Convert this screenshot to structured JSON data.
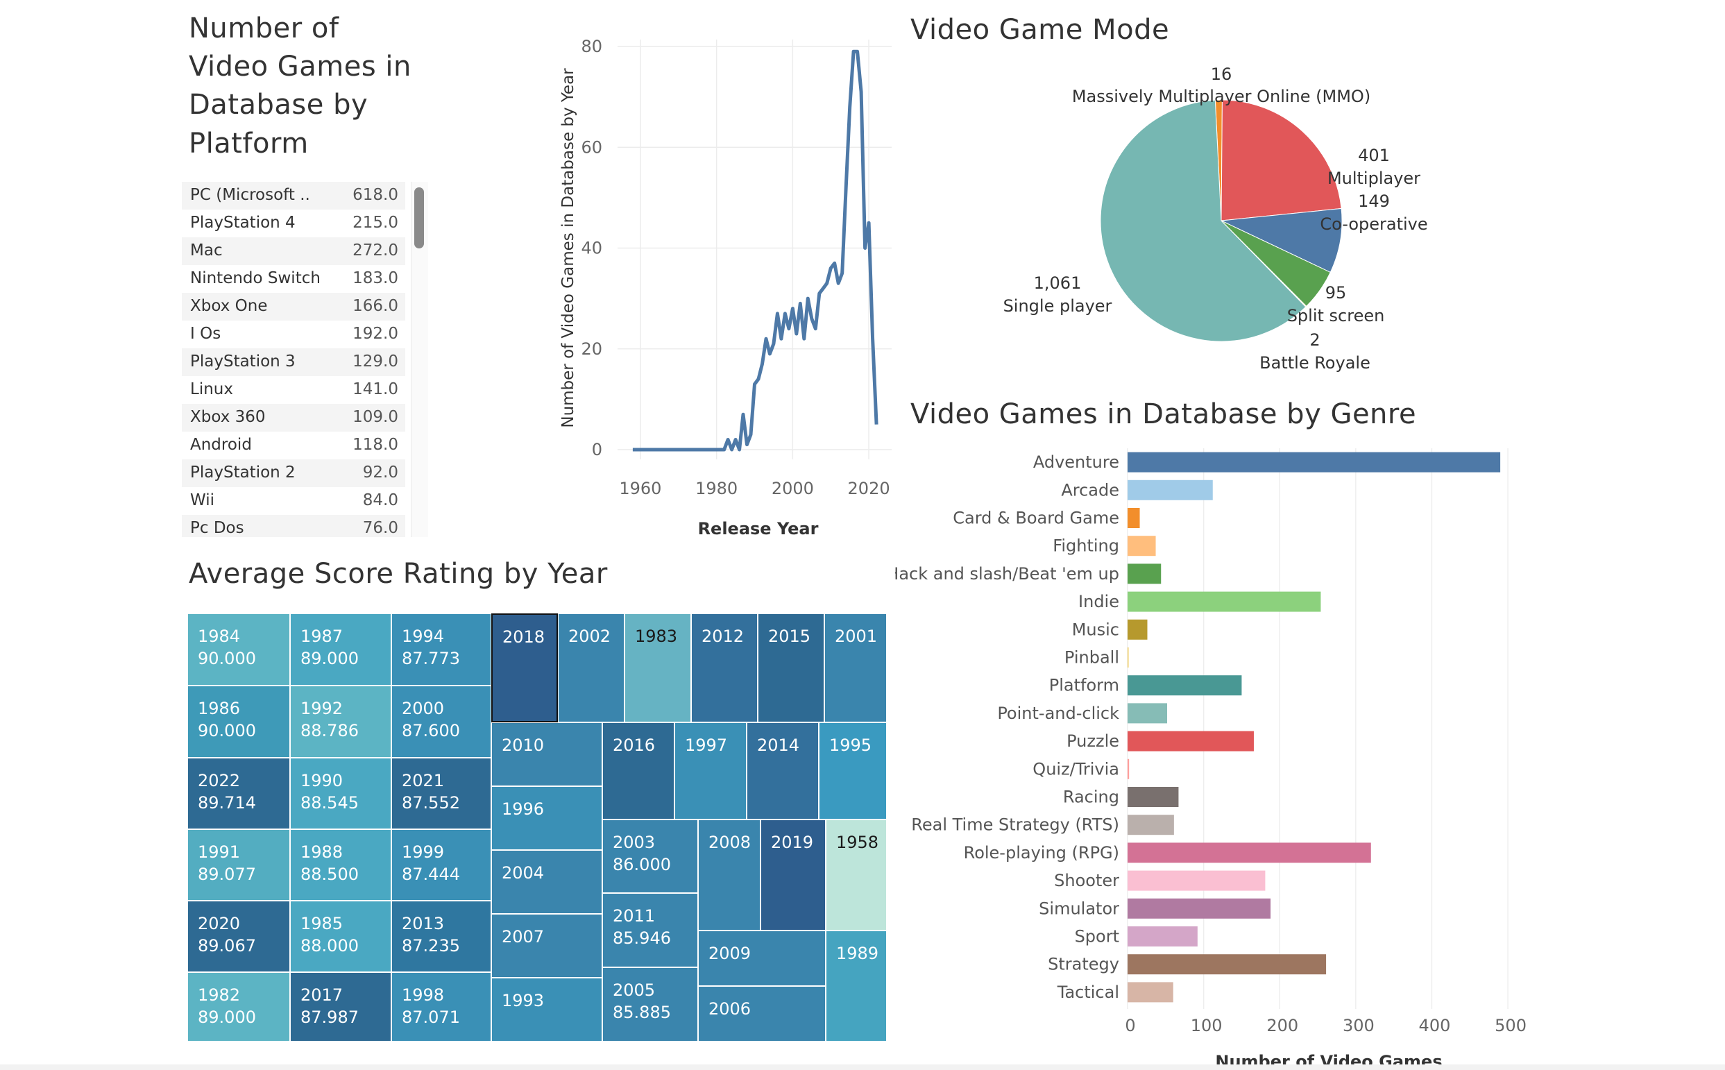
{
  "titles": {
    "platform": "Number of\nVideo Games in\nDatabase by\nPlatform",
    "mode": "Video Game Mode",
    "genre": "Video Games in Database by Genre",
    "score": "Average Score Rating by Year"
  },
  "platform_table": {
    "rows": [
      {
        "name": "PC (Microsoft ..",
        "value": "618.0"
      },
      {
        "name": "PlayStation 4",
        "value": "215.0"
      },
      {
        "name": "Mac",
        "value": "272.0"
      },
      {
        "name": "Nintendo Switch",
        "value": "183.0"
      },
      {
        "name": "Xbox One",
        "value": "166.0"
      },
      {
        "name": "I Os",
        "value": "192.0"
      },
      {
        "name": "PlayStation 3",
        "value": "129.0"
      },
      {
        "name": "Linux",
        "value": "141.0"
      },
      {
        "name": "Xbox 360",
        "value": "109.0"
      },
      {
        "name": "Android",
        "value": "118.0"
      },
      {
        "name": "PlayStation 2",
        "value": "92.0"
      },
      {
        "name": "Wii",
        "value": "84.0"
      },
      {
        "name": "Pc Dos",
        "value": "76.0"
      }
    ]
  },
  "chart_data": [
    {
      "type": "line",
      "xlabel": "Release Year",
      "ylabel": "Number of Video Games in Database by Year",
      "xlim": [
        1954,
        2026
      ],
      "ylim": [
        0,
        80
      ],
      "x_ticks": [
        1960,
        1980,
        2000,
        2020
      ],
      "y_ticks": [
        0,
        20,
        40,
        60,
        80
      ],
      "grid": true,
      "color": "#4e79a7",
      "points": [
        [
          1958,
          0
        ],
        [
          1978,
          0
        ],
        [
          1982,
          0
        ],
        [
          1983,
          2
        ],
        [
          1984,
          0
        ],
        [
          1985,
          2
        ],
        [
          1986,
          0
        ],
        [
          1987,
          7
        ],
        [
          1988,
          1
        ],
        [
          1989,
          3
        ],
        [
          1990,
          13
        ],
        [
          1991,
          14
        ],
        [
          1992,
          17
        ],
        [
          1993,
          22
        ],
        [
          1994,
          19
        ],
        [
          1995,
          21
        ],
        [
          1996,
          27
        ],
        [
          1997,
          22
        ],
        [
          1998,
          27
        ],
        [
          1999,
          24
        ],
        [
          2000,
          28
        ],
        [
          2001,
          23
        ],
        [
          2002,
          29
        ],
        [
          2003,
          22
        ],
        [
          2004,
          30
        ],
        [
          2005,
          26
        ],
        [
          2006,
          24
        ],
        [
          2007,
          31
        ],
        [
          2008,
          32
        ],
        [
          2009,
          33
        ],
        [
          2010,
          36
        ],
        [
          2011,
          37
        ],
        [
          2012,
          33
        ],
        [
          2013,
          35
        ],
        [
          2014,
          52
        ],
        [
          2015,
          68
        ],
        [
          2016,
          79
        ],
        [
          2017,
          79
        ],
        [
          2018,
          71
        ],
        [
          2019,
          40
        ],
        [
          2020,
          45
        ],
        [
          2021,
          22
        ],
        [
          2022,
          5
        ]
      ]
    },
    {
      "type": "pie",
      "title": "Video Game Mode",
      "slices": [
        {
          "label": "Massively Multiplayer Online (MMO)",
          "value": 16,
          "value_label": "16",
          "color": "#f28e2b"
        },
        {
          "label": "Multiplayer",
          "value": 401,
          "value_label": "401",
          "color": "#e15759"
        },
        {
          "label": "Co-operative",
          "value": 149,
          "value_label": "149",
          "color": "#4e79a7"
        },
        {
          "label": "Split screen",
          "value": 95,
          "value_label": "95",
          "color": "#59a14f"
        },
        {
          "label": "Battle Royale",
          "value": 2,
          "value_label": "2",
          "color": "#edc948"
        },
        {
          "label": "Single player",
          "value": 1061,
          "value_label": "1,061",
          "color": "#76b7b2"
        }
      ]
    },
    {
      "type": "bar",
      "orientation": "horizontal",
      "title": "Video Games in Database by Genre",
      "xlabel": "Number of Video Games",
      "xlim": [
        0,
        520
      ],
      "x_ticks": [
        0,
        100,
        200,
        300,
        400,
        500
      ],
      "grid": true,
      "categories": [
        "Adventure",
        "Arcade",
        "Card & Board Game",
        "Fighting",
        "Hack and slash/Beat 'em up",
        "Indie",
        "Music",
        "Pinball",
        "Platform",
        "Point-and-click",
        "Puzzle",
        "Quiz/Trivia",
        "Racing",
        "Real Time Strategy (RTS)",
        "Role-playing (RPG)",
        "Shooter",
        "Simulator",
        "Sport",
        "Strategy",
        "Tactical"
      ],
      "values": [
        490,
        112,
        16,
        37,
        44,
        254,
        26,
        1,
        150,
        52,
        166,
        2,
        67,
        61,
        320,
        181,
        188,
        92,
        261,
        60
      ],
      "colors": [
        "#4e79a7",
        "#a0cbe8",
        "#f28e2b",
        "#ffbe7d",
        "#59a14f",
        "#8cd17d",
        "#b6992d",
        "#f1ce63",
        "#499894",
        "#86bcb6",
        "#e15759",
        "#ff9d9a",
        "#79706e",
        "#bab0ac",
        "#d37295",
        "#fabfd2",
        "#b07aa1",
        "#d4a6c8",
        "#9d7660",
        "#d7b5a6"
      ]
    },
    {
      "type": "treemap",
      "title": "Average Score Rating by Year",
      "cells": [
        {
          "year": "1984",
          "score": "90.000"
        },
        {
          "year": "1986",
          "score": "90.000"
        },
        {
          "year": "2022",
          "score": "89.714"
        },
        {
          "year": "1991",
          "score": "89.077"
        },
        {
          "year": "2020",
          "score": "89.067"
        },
        {
          "year": "1982",
          "score": "89.000"
        },
        {
          "year": "1987",
          "score": "89.000"
        },
        {
          "year": "1992",
          "score": "88.786"
        },
        {
          "year": "1990",
          "score": "88.545"
        },
        {
          "year": "1988",
          "score": "88.500"
        },
        {
          "year": "1985",
          "score": "88.000"
        },
        {
          "year": "2017",
          "score": "87.987"
        },
        {
          "year": "1994",
          "score": "87.773"
        },
        {
          "year": "2000",
          "score": "87.600"
        },
        {
          "year": "2021",
          "score": "87.552"
        },
        {
          "year": "1999",
          "score": "87.444"
        },
        {
          "year": "2013",
          "score": "87.235"
        },
        {
          "year": "1998",
          "score": "87.071"
        },
        {
          "year": "2018",
          "score": ""
        },
        {
          "year": "2002",
          "score": ""
        },
        {
          "year": "1983",
          "score": ""
        },
        {
          "year": "2012",
          "score": ""
        },
        {
          "year": "2015",
          "score": ""
        },
        {
          "year": "2001",
          "score": ""
        },
        {
          "year": "2010",
          "score": ""
        },
        {
          "year": "1996",
          "score": ""
        },
        {
          "year": "2004",
          "score": ""
        },
        {
          "year": "2007",
          "score": ""
        },
        {
          "year": "1993",
          "score": ""
        },
        {
          "year": "2016",
          "score": ""
        },
        {
          "year": "1997",
          "score": ""
        },
        {
          "year": "2014",
          "score": ""
        },
        {
          "year": "1995",
          "score": ""
        },
        {
          "year": "2003",
          "score": "86.000"
        },
        {
          "year": "2011",
          "score": "85.946"
        },
        {
          "year": "2005",
          "score": "85.885"
        },
        {
          "year": "2008",
          "score": ""
        },
        {
          "year": "2019",
          "score": ""
        },
        {
          "year": "1958",
          "score": ""
        },
        {
          "year": "2009",
          "score": ""
        },
        {
          "year": "2006",
          "score": ""
        },
        {
          "year": "1989",
          "score": ""
        }
      ],
      "colors": {
        "1984": "#5cb4c4",
        "1986": "#3e9ab8",
        "2022": "#2e6a93",
        "1991": "#53adc1",
        "2020": "#2e6a93",
        "1982": "#5cb4c4",
        "1987": "#4aa8c2",
        "1992": "#5cb4c4",
        "1990": "#4aa8c2",
        "1988": "#4aa8c2",
        "1985": "#4aa8c2",
        "2017": "#2e6a93",
        "1994": "#3a90b6",
        "2000": "#3a90b6",
        "2021": "#2e6a93",
        "1999": "#3a90b6",
        "2013": "#2f77a0",
        "1998": "#3a90b6",
        "2018": "#2e5e8e",
        "2002": "#3a85ad",
        "1983": "#66b3c3",
        "2012": "#33709c",
        "2015": "#2e6a93",
        "2001": "#3a85ad",
        "2010": "#3a85ad",
        "1996": "#3a90b6",
        "2004": "#3a85ad",
        "2007": "#3a85ad",
        "1993": "#3a90b6",
        "2016": "#2e6a93",
        "1997": "#3a90b6",
        "2014": "#33709c",
        "1995": "#3a9ac0",
        "2003": "#3a85ad",
        "2011": "#3a85ad",
        "2005": "#3a85ad",
        "2008": "#3a85ad",
        "2019": "#2e5e8e",
        "1958": "#bde5da",
        "2009": "#3a85ad",
        "2006": "#3a85ad",
        "1989": "#45a4c0"
      },
      "selected": "2018"
    }
  ]
}
